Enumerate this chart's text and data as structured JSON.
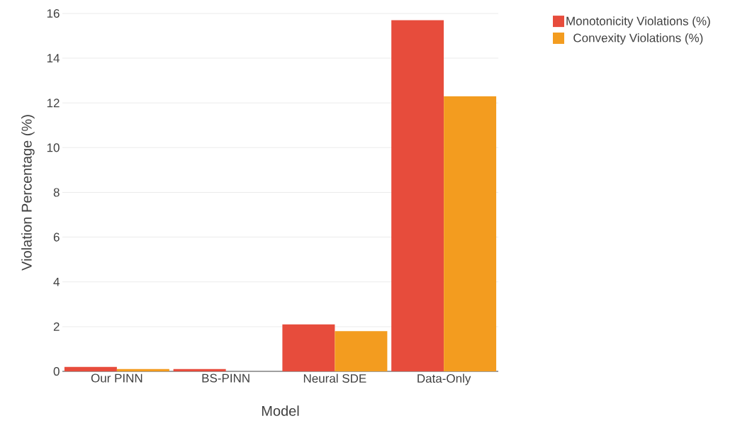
{
  "chart_data": {
    "type": "bar",
    "xlabel": "Model",
    "ylabel": "Violation Percentage (%)",
    "categories": [
      "Our PINN",
      "BS-PINN",
      "Neural SDE",
      "Data-Only"
    ],
    "series": [
      {
        "name": "Monotonicity Violations (%)",
        "color": "#e74c3c",
        "values": [
          0.2,
          0.1,
          2.1,
          15.7
        ]
      },
      {
        "name": "Convexity Violations (%)",
        "color": "#f39c1f",
        "values": [
          0.1,
          0,
          1.8,
          12.3
        ]
      }
    ],
    "ylim": [
      0,
      16
    ],
    "yticks": [
      0,
      2,
      4,
      6,
      8,
      10,
      12,
      14,
      16
    ],
    "grid": "y",
    "legend": "top right"
  }
}
